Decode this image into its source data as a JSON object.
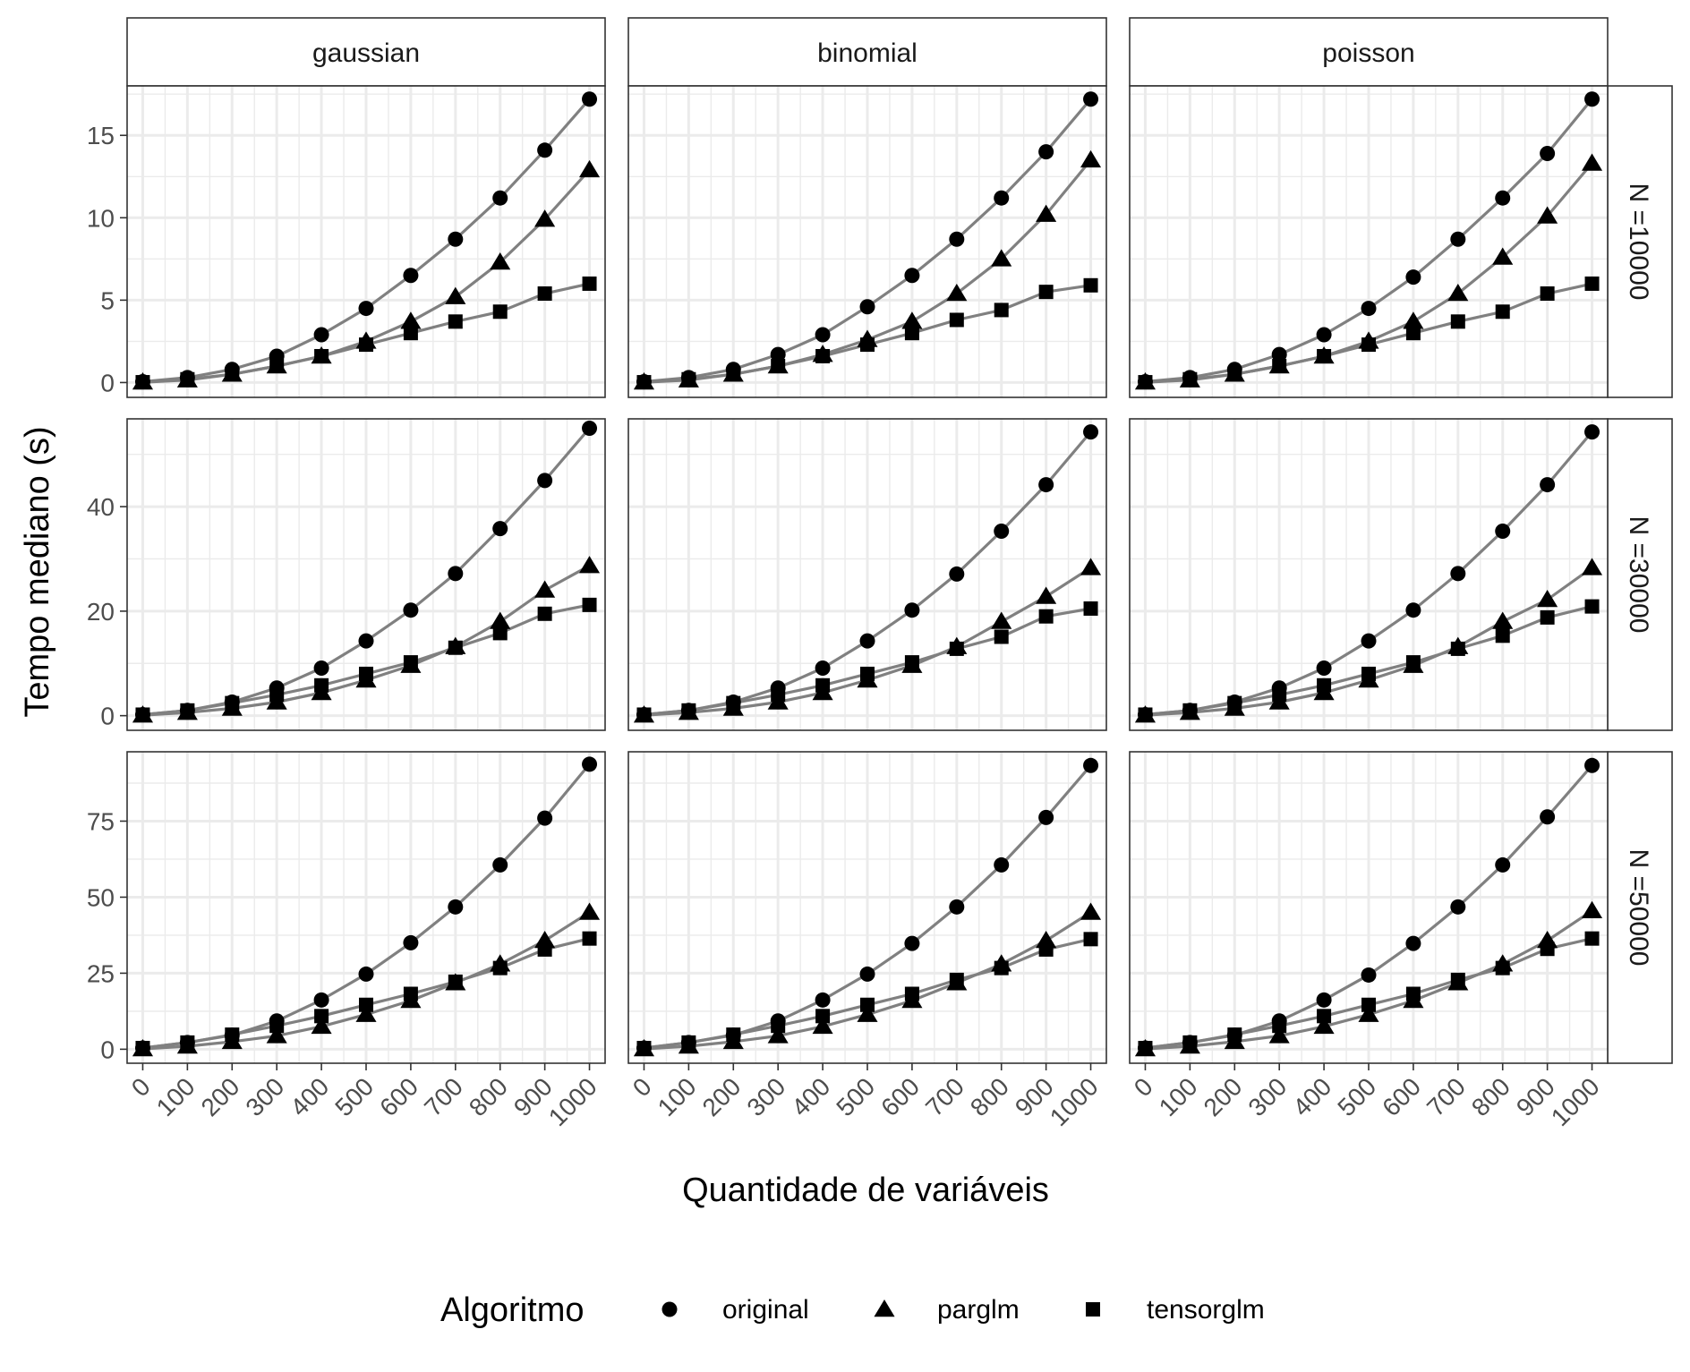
{
  "chart_data": {
    "type": "line",
    "xlabel": "Quantidade de variáveis",
    "ylabel": "Tempo mediano (s)",
    "x": [
      0,
      100,
      200,
      300,
      400,
      500,
      600,
      700,
      800,
      900,
      1000
    ],
    "x_tick_labels": [
      "0",
      "100",
      "200",
      "300",
      "400",
      "500",
      "600",
      "700",
      "800",
      "900",
      "1000"
    ],
    "columns": [
      "gaussian",
      "binomial",
      "poisson"
    ],
    "rows": [
      "N =10000",
      "N =30000",
      "N =50000"
    ],
    "legend": {
      "title": "Algoritmo",
      "position": "bottom",
      "entries": [
        {
          "name": "original",
          "shape": "circle"
        },
        {
          "name": "parglm",
          "shape": "triangle"
        },
        {
          "name": "tensorglm",
          "shape": "square"
        }
      ]
    },
    "grid": true,
    "line_color": "#808080",
    "marker_color": "#000000",
    "panels_rows": [
      {
        "ylim": [
          -0.9,
          18.0
        ],
        "yticks": [
          0,
          5,
          10,
          15
        ],
        "panels": [
          {
            "series": [
              {
                "name": "original",
                "values": [
                  0.05,
                  0.3,
                  0.8,
                  1.6,
                  2.9,
                  4.5,
                  6.5,
                  8.7,
                  11.2,
                  14.1,
                  17.2
                ]
              },
              {
                "name": "parglm",
                "values": [
                  0.02,
                  0.15,
                  0.5,
                  1.0,
                  1.6,
                  2.5,
                  3.7,
                  5.2,
                  7.3,
                  9.9,
                  12.9
                ]
              },
              {
                "name": "tensorglm",
                "values": [
                  0.02,
                  0.2,
                  0.5,
                  1.0,
                  1.6,
                  2.3,
                  3.0,
                  3.7,
                  4.3,
                  5.4,
                  6.0
                ]
              }
            ]
          },
          {
            "series": [
              {
                "name": "original",
                "values": [
                  0.05,
                  0.3,
                  0.8,
                  1.7,
                  2.9,
                  4.6,
                  6.5,
                  8.7,
                  11.2,
                  14.0,
                  17.2
                ]
              },
              {
                "name": "parglm",
                "values": [
                  0.02,
                  0.15,
                  0.5,
                  1.0,
                  1.7,
                  2.6,
                  3.7,
                  5.4,
                  7.5,
                  10.2,
                  13.5
                ]
              },
              {
                "name": "tensorglm",
                "values": [
                  0.02,
                  0.2,
                  0.5,
                  1.0,
                  1.6,
                  2.3,
                  3.0,
                  3.8,
                  4.4,
                  5.5,
                  5.9
                ]
              }
            ]
          },
          {
            "series": [
              {
                "name": "original",
                "values": [
                  0.05,
                  0.3,
                  0.8,
                  1.7,
                  2.9,
                  4.5,
                  6.4,
                  8.7,
                  11.2,
                  13.9,
                  17.2
                ]
              },
              {
                "name": "parglm",
                "values": [
                  0.02,
                  0.15,
                  0.5,
                  1.0,
                  1.6,
                  2.5,
                  3.7,
                  5.4,
                  7.6,
                  10.1,
                  13.3
                ]
              },
              {
                "name": "tensorglm",
                "values": [
                  0.02,
                  0.2,
                  0.5,
                  1.0,
                  1.6,
                  2.3,
                  3.0,
                  3.7,
                  4.3,
                  5.4,
                  6.0
                ]
              }
            ]
          }
        ]
      },
      {
        "ylim": [
          -2.8,
          56.8
        ],
        "yticks": [
          0,
          20,
          40
        ],
        "panels": [
          {
            "series": [
              {
                "name": "original",
                "values": [
                  0.2,
                  1.0,
                  2.6,
                  5.3,
                  9.1,
                  14.3,
                  20.2,
                  27.2,
                  35.8,
                  45.0,
                  55.0
                ]
              },
              {
                "name": "parglm",
                "values": [
                  0.1,
                  0.6,
                  1.4,
                  2.6,
                  4.4,
                  6.8,
                  9.6,
                  13.2,
                  18.0,
                  24.0,
                  28.7
                ]
              },
              {
                "name": "tensorglm",
                "values": [
                  0.2,
                  1.0,
                  2.4,
                  4.0,
                  5.8,
                  8.0,
                  10.2,
                  13.0,
                  15.8,
                  19.5,
                  21.2
                ]
              }
            ]
          },
          {
            "series": [
              {
                "name": "original",
                "values": [
                  0.2,
                  1.0,
                  2.6,
                  5.3,
                  9.1,
                  14.3,
                  20.2,
                  27.1,
                  35.3,
                  44.2,
                  54.3
                ]
              },
              {
                "name": "parglm",
                "values": [
                  0.1,
                  0.6,
                  1.4,
                  2.6,
                  4.4,
                  6.8,
                  9.6,
                  13.2,
                  18.0,
                  22.8,
                  28.3
                ]
              },
              {
                "name": "tensorglm",
                "values": [
                  0.2,
                  1.0,
                  2.4,
                  4.0,
                  5.8,
                  8.0,
                  10.2,
                  12.8,
                  15.1,
                  19.0,
                  20.5
                ]
              }
            ]
          },
          {
            "series": [
              {
                "name": "original",
                "values": [
                  0.2,
                  1.0,
                  2.6,
                  5.3,
                  9.1,
                  14.3,
                  20.2,
                  27.2,
                  35.3,
                  44.2,
                  54.3
                ]
              },
              {
                "name": "parglm",
                "values": [
                  0.1,
                  0.6,
                  1.4,
                  2.6,
                  4.4,
                  6.8,
                  9.6,
                  13.2,
                  18.0,
                  22.2,
                  28.3
                ]
              },
              {
                "name": "tensorglm",
                "values": [
                  0.2,
                  1.0,
                  2.4,
                  4.0,
                  5.8,
                  8.0,
                  10.2,
                  12.8,
                  15.3,
                  18.8,
                  20.9
                ]
              }
            ]
          }
        ]
      },
      {
        "ylim": [
          -4.6,
          97.8
        ],
        "yticks": [
          0,
          25,
          50,
          75
        ],
        "panels": [
          {
            "series": [
              {
                "name": "original",
                "values": [
                  0.4,
                  2.2,
                  4.6,
                  9.3,
                  16.2,
                  24.7,
                  35.0,
                  46.8,
                  60.6,
                  76.0,
                  93.7
                ]
              },
              {
                "name": "parglm",
                "values": [
                  0.1,
                  1.0,
                  2.5,
                  4.4,
                  7.5,
                  11.4,
                  16.0,
                  21.8,
                  28.0,
                  35.7,
                  45.0
                ]
              },
              {
                "name": "tensorglm",
                "values": [
                  0.4,
                  2.2,
                  4.8,
                  7.7,
                  10.9,
                  14.6,
                  18.2,
                  22.2,
                  26.7,
                  32.8,
                  36.4
                ]
              }
            ]
          },
          {
            "series": [
              {
                "name": "original",
                "values": [
                  0.4,
                  2.2,
                  4.6,
                  9.3,
                  16.2,
                  24.7,
                  34.8,
                  46.8,
                  60.6,
                  76.2,
                  93.3
                ]
              },
              {
                "name": "parglm",
                "values": [
                  0.1,
                  1.0,
                  2.5,
                  4.4,
                  7.5,
                  11.4,
                  16.0,
                  21.8,
                  28.0,
                  35.7,
                  45.0
                ]
              },
              {
                "name": "tensorglm",
                "values": [
                  0.4,
                  2.2,
                  4.8,
                  7.7,
                  10.9,
                  14.6,
                  18.2,
                  22.8,
                  26.7,
                  32.8,
                  36.2
                ]
              }
            ]
          },
          {
            "series": [
              {
                "name": "original",
                "values": [
                  0.4,
                  2.2,
                  4.6,
                  9.3,
                  16.2,
                  24.4,
                  34.8,
                  46.8,
                  60.6,
                  76.4,
                  93.3
                ]
              },
              {
                "name": "parglm",
                "values": [
                  0.1,
                  1.0,
                  2.5,
                  4.4,
                  7.5,
                  11.4,
                  16.0,
                  21.8,
                  28.0,
                  35.7,
                  45.5
                ]
              },
              {
                "name": "tensorglm",
                "values": [
                  0.4,
                  2.2,
                  4.8,
                  7.7,
                  10.9,
                  14.6,
                  18.2,
                  22.8,
                  26.7,
                  33.0,
                  36.4
                ]
              }
            ]
          }
        ]
      }
    ]
  }
}
